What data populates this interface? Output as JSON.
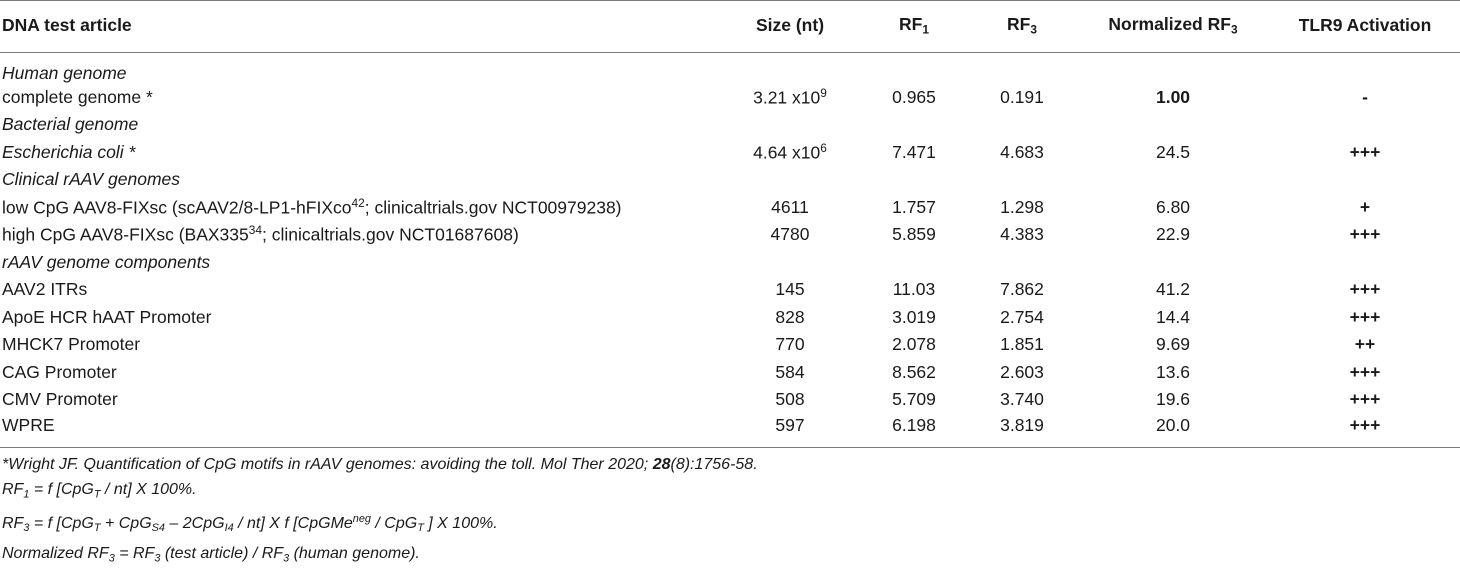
{
  "header": {
    "col1": "DNA test article",
    "col2": "Size (nt)",
    "col3_base": "RF",
    "col3_sub": "1",
    "col4_base": "RF",
    "col4_sub": "3",
    "col5_base": "Normalized RF",
    "col5_sub": "3",
    "col6": "TLR9 Activation"
  },
  "sections": {
    "human": "Human genome",
    "bacterial": "Bacterial genome",
    "clinical": "Clinical rAAV genomes",
    "components": "rAAV genome components"
  },
  "rows": {
    "human_complete": {
      "name": "complete genome *",
      "size_base": "3.21 x10",
      "size_exp": "9",
      "rf1": "0.965",
      "rf3": "0.191",
      "norm": "1.00",
      "tlr9": "-"
    },
    "ecoli": {
      "name": "Escherichia coli *",
      "size_base": "4.64 x10",
      "size_exp": "6",
      "rf1": "7.471",
      "rf3": "4.683",
      "norm": "24.5",
      "tlr9": "+++"
    },
    "low_cpg": {
      "name_a": "low CpG AAV8-FIXsc (scAAV2/8-LP1-hFIXco",
      "name_sup": "42",
      "name_b": "; clinicaltrials.gov NCT00979238)",
      "size": "4611",
      "rf1": "1.757",
      "rf3": "1.298",
      "norm": "6.80",
      "tlr9": "+"
    },
    "high_cpg": {
      "name_a": "high CpG AAV8-FIXsc (BAX335",
      "name_sup": "34",
      "name_b": "; clinicaltrials.gov NCT01687608)",
      "size": "4780",
      "rf1": "5.859",
      "rf3": "4.383",
      "norm": "22.9",
      "tlr9": "+++"
    },
    "components": [
      {
        "name": "AAV2 ITRs",
        "size": "145",
        "rf1": "11.03",
        "rf3": "7.862",
        "norm": "41.2",
        "tlr9": "+++"
      },
      {
        "name": "ApoE HCR hAAT Promoter",
        "size": "828",
        "rf1": "3.019",
        "rf3": "2.754",
        "norm": "14.4",
        "tlr9": "+++"
      },
      {
        "name": "MHCK7 Promoter",
        "size": "770",
        "rf1": "2.078",
        "rf3": "1.851",
        "norm": "9.69",
        "tlr9": "++"
      },
      {
        "name": "CAG Promoter",
        "size": "584",
        "rf1": "8.562",
        "rf3": "2.603",
        "norm": "13.6",
        "tlr9": "+++"
      },
      {
        "name": "CMV Promoter",
        "size": "508",
        "rf1": "5.709",
        "rf3": "3.740",
        "norm": "19.6",
        "tlr9": "+++"
      },
      {
        "name": "WPRE",
        "size": "597",
        "rf1": "6.198",
        "rf3": "3.819",
        "norm": "20.0",
        "tlr9": "+++"
      }
    ]
  },
  "footnotes": {
    "ref_a": "*Wright JF. Quantification of CpG motifs in rAAV genomes: avoiding the toll. Mol Ther 2020; ",
    "ref_vol": "28",
    "ref_b": "(8):1756-58.",
    "rf1_a": "RF",
    "rf1_sub1": "1",
    "rf1_b": " = f [CpG",
    "rf1_sub2": "T",
    "rf1_c": " / nt] X 100%.",
    "rf3_a": "RF",
    "rf3_sub1": "3",
    "rf3_b": " = f [CpG",
    "rf3_sub2": "T",
    "rf3_c": " + CpG",
    "rf3_sub3": "S4",
    "rf3_d": " – 2CpG",
    "rf3_sub4": "I4",
    "rf3_e": " / nt] X f [CpGMe",
    "rf3_sup": "neg",
    "rf3_f": " / CpG",
    "rf3_sub5": "T",
    "rf3_g": " ] X 100%.",
    "norm_a": "Normalized RF",
    "norm_sub1": "3",
    "norm_b": " = RF",
    "norm_sub2": "3",
    "norm_c": " (test article) / RF",
    "norm_sub3": "3",
    "norm_d": " (human genome)."
  }
}
